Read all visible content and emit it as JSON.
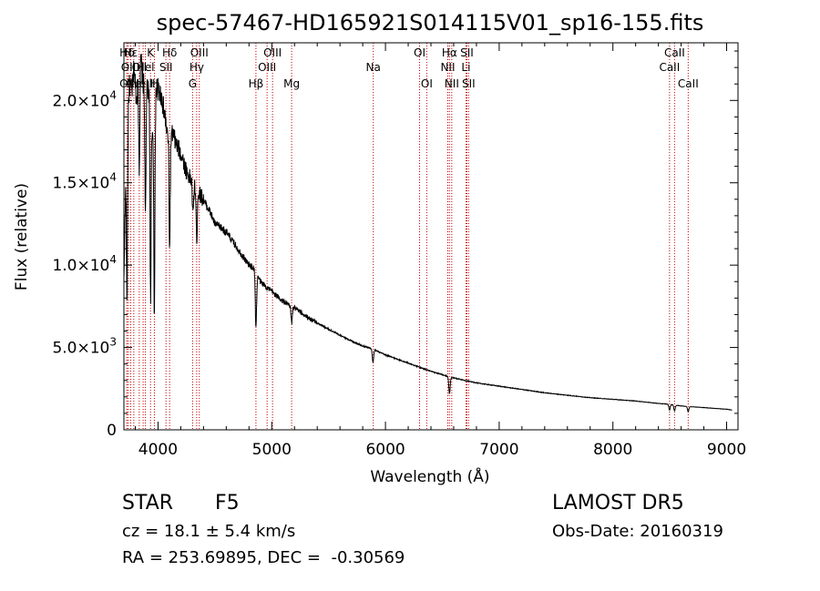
{
  "chart_data": {
    "type": "line",
    "title": "spec-57467-HD165921S014115V01_sp16-155.fits",
    "xlabel": "Wavelength (Å)",
    "ylabel": "Flux (relative)",
    "xlim": [
      3700,
      9100
    ],
    "ylim": [
      0,
      23500
    ],
    "xticks": [
      {
        "value": 4000,
        "label": "4000"
      },
      {
        "value": 5000,
        "label": "5000"
      },
      {
        "value": 6000,
        "label": "6000"
      },
      {
        "value": 7000,
        "label": "7000"
      },
      {
        "value": 8000,
        "label": "8000"
      },
      {
        "value": 9000,
        "label": "9000"
      }
    ],
    "yticks": [
      {
        "value": 0,
        "mant": "0",
        "exp": ""
      },
      {
        "value": 5000,
        "mant": "5.0×10",
        "exp": "3"
      },
      {
        "value": 10000,
        "mant": "1.0×10",
        "exp": "4"
      },
      {
        "value": 15000,
        "mant": "1.5×10",
        "exp": "4"
      },
      {
        "value": 20000,
        "mant": "2.0×10",
        "exp": "4"
      }
    ],
    "spectrum": {
      "x": [
        3700,
        3720,
        3735,
        3750,
        3770,
        3790,
        3810,
        3830,
        3850,
        3870,
        3890,
        3910,
        3930,
        3950,
        3970,
        3990,
        4010,
        4030,
        4060,
        4080,
        4100,
        4130,
        4160,
        4200,
        4250,
        4300,
        4340,
        4380,
        4420,
        4460,
        4500,
        4550,
        4600,
        4650,
        4700,
        4750,
        4800,
        4850,
        4861,
        4880,
        4900,
        4950,
        5000,
        5050,
        5100,
        5150,
        5200,
        5300,
        5400,
        5500,
        5600,
        5700,
        5800,
        5890,
        5950,
        6000,
        6100,
        6200,
        6300,
        6400,
        6500,
        6563,
        6600,
        6700,
        6800,
        7000,
        7200,
        7400,
        7600,
        7800,
        8000,
        8200,
        8400,
        8500,
        8542,
        8600,
        8662,
        8700,
        8800,
        8900,
        9000,
        9050
      ],
      "y": [
        9000,
        17000,
        19500,
        21000,
        20500,
        22000,
        20000,
        21500,
        22500,
        21000,
        21000,
        20500,
        21000,
        17500,
        20500,
        20800,
        20500,
        20300,
        19000,
        18000,
        17500,
        18000,
        17300,
        16800,
        15700,
        15000,
        14500,
        14200,
        13700,
        13200,
        12500,
        12300,
        12000,
        11500,
        11000,
        10500,
        10000,
        9800,
        9300,
        9300,
        9000,
        8700,
        8400,
        8100,
        7800,
        7600,
        7400,
        6900,
        6500,
        6100,
        5750,
        5400,
        5100,
        4900,
        4700,
        4550,
        4300,
        4050,
        3800,
        3550,
        3350,
        3200,
        3150,
        3000,
        2850,
        2650,
        2450,
        2250,
        2100,
        1950,
        1850,
        1750,
        1600,
        1550,
        1500,
        1450,
        1420,
        1400,
        1350,
        1300,
        1250,
        1200
      ]
    },
    "absorption_dips": [
      {
        "x": 3727,
        "y": 8000
      },
      {
        "x": 3835,
        "y": 16000
      },
      {
        "x": 3889,
        "y": 13000
      },
      {
        "x": 3934,
        "y": 8000
      },
      {
        "x": 3968,
        "y": 7000
      },
      {
        "x": 4102,
        "y": 11000
      },
      {
        "x": 4307,
        "y": 13000
      },
      {
        "x": 4340,
        "y": 11500
      },
      {
        "x": 4861,
        "y": 6300
      },
      {
        "x": 5175,
        "y": 6500
      },
      {
        "x": 5890,
        "y": 4100
      },
      {
        "x": 6563,
        "y": 2200
      },
      {
        "x": 8498,
        "y": 1200
      },
      {
        "x": 8542,
        "y": 1150
      },
      {
        "x": 8662,
        "y": 1100
      }
    ],
    "line_markers": [
      {
        "x": 3727,
        "row": 3,
        "label": "OII"
      },
      {
        "x": 3727,
        "row": 1,
        "label": "Hδ"
      },
      {
        "x": 3740,
        "row": 2,
        "label": "OII"
      },
      {
        "x": 3760,
        "row": 1,
        "label": "Hε"
      },
      {
        "x": 3787,
        "row": 3,
        "label": "Ne"
      },
      {
        "x": 3835,
        "row": 2,
        "label": "OII"
      },
      {
        "x": 3869,
        "row": 3,
        "label": "NeIII"
      },
      {
        "x": 3889,
        "row": 2,
        "label": "Hel"
      },
      {
        "x": 3934,
        "row": 1,
        "label": "K"
      },
      {
        "x": 3968,
        "row": 3,
        "label": "H"
      },
      {
        "x": 4070,
        "row": 2,
        "label": "SII"
      },
      {
        "x": 4102,
        "row": 1,
        "label": "Hδ"
      },
      {
        "x": 4304,
        "row": 3,
        "label": "G"
      },
      {
        "x": 4340,
        "row": 2,
        "label": "Hγ"
      },
      {
        "x": 4363,
        "row": 1,
        "label": "OIII"
      },
      {
        "x": 4861,
        "row": 3,
        "label": "Hβ"
      },
      {
        "x": 4959,
        "row": 2,
        "label": "OIII"
      },
      {
        "x": 5007,
        "row": 1,
        "label": "OIII"
      },
      {
        "x": 5175,
        "row": 3,
        "label": "Mg"
      },
      {
        "x": 5893,
        "row": 2,
        "label": "Na"
      },
      {
        "x": 6300,
        "row": 1,
        "label": "OI"
      },
      {
        "x": 6363,
        "row": 3,
        "label": "OI"
      },
      {
        "x": 6548,
        "row": 2,
        "label": "NII"
      },
      {
        "x": 6563,
        "row": 1,
        "label": "Hα"
      },
      {
        "x": 6583,
        "row": 3,
        "label": "NII"
      },
      {
        "x": 6708,
        "row": 2,
        "label": "Li"
      },
      {
        "x": 6716,
        "row": 1,
        "label": "SII"
      },
      {
        "x": 6731,
        "row": 3,
        "label": "SII"
      },
      {
        "x": 8498,
        "row": 2,
        "label": "CaII"
      },
      {
        "x": 8542,
        "row": 1,
        "label": "CaII"
      },
      {
        "x": 8662,
        "row": 3,
        "label": "CaII"
      }
    ],
    "grid": false,
    "legend": "none"
  },
  "info": {
    "class_label": "STAR",
    "subclass": "F5",
    "cz": "cz = 18.1 ± 5.4 km/s",
    "coords": "RA = 253.69895, DEC =  -0.30569",
    "survey": "LAMOST DR5",
    "obs_date": "Obs-Date: 20160319"
  },
  "colors": {
    "spectrum": "#000000",
    "marker": "#c00000"
  }
}
